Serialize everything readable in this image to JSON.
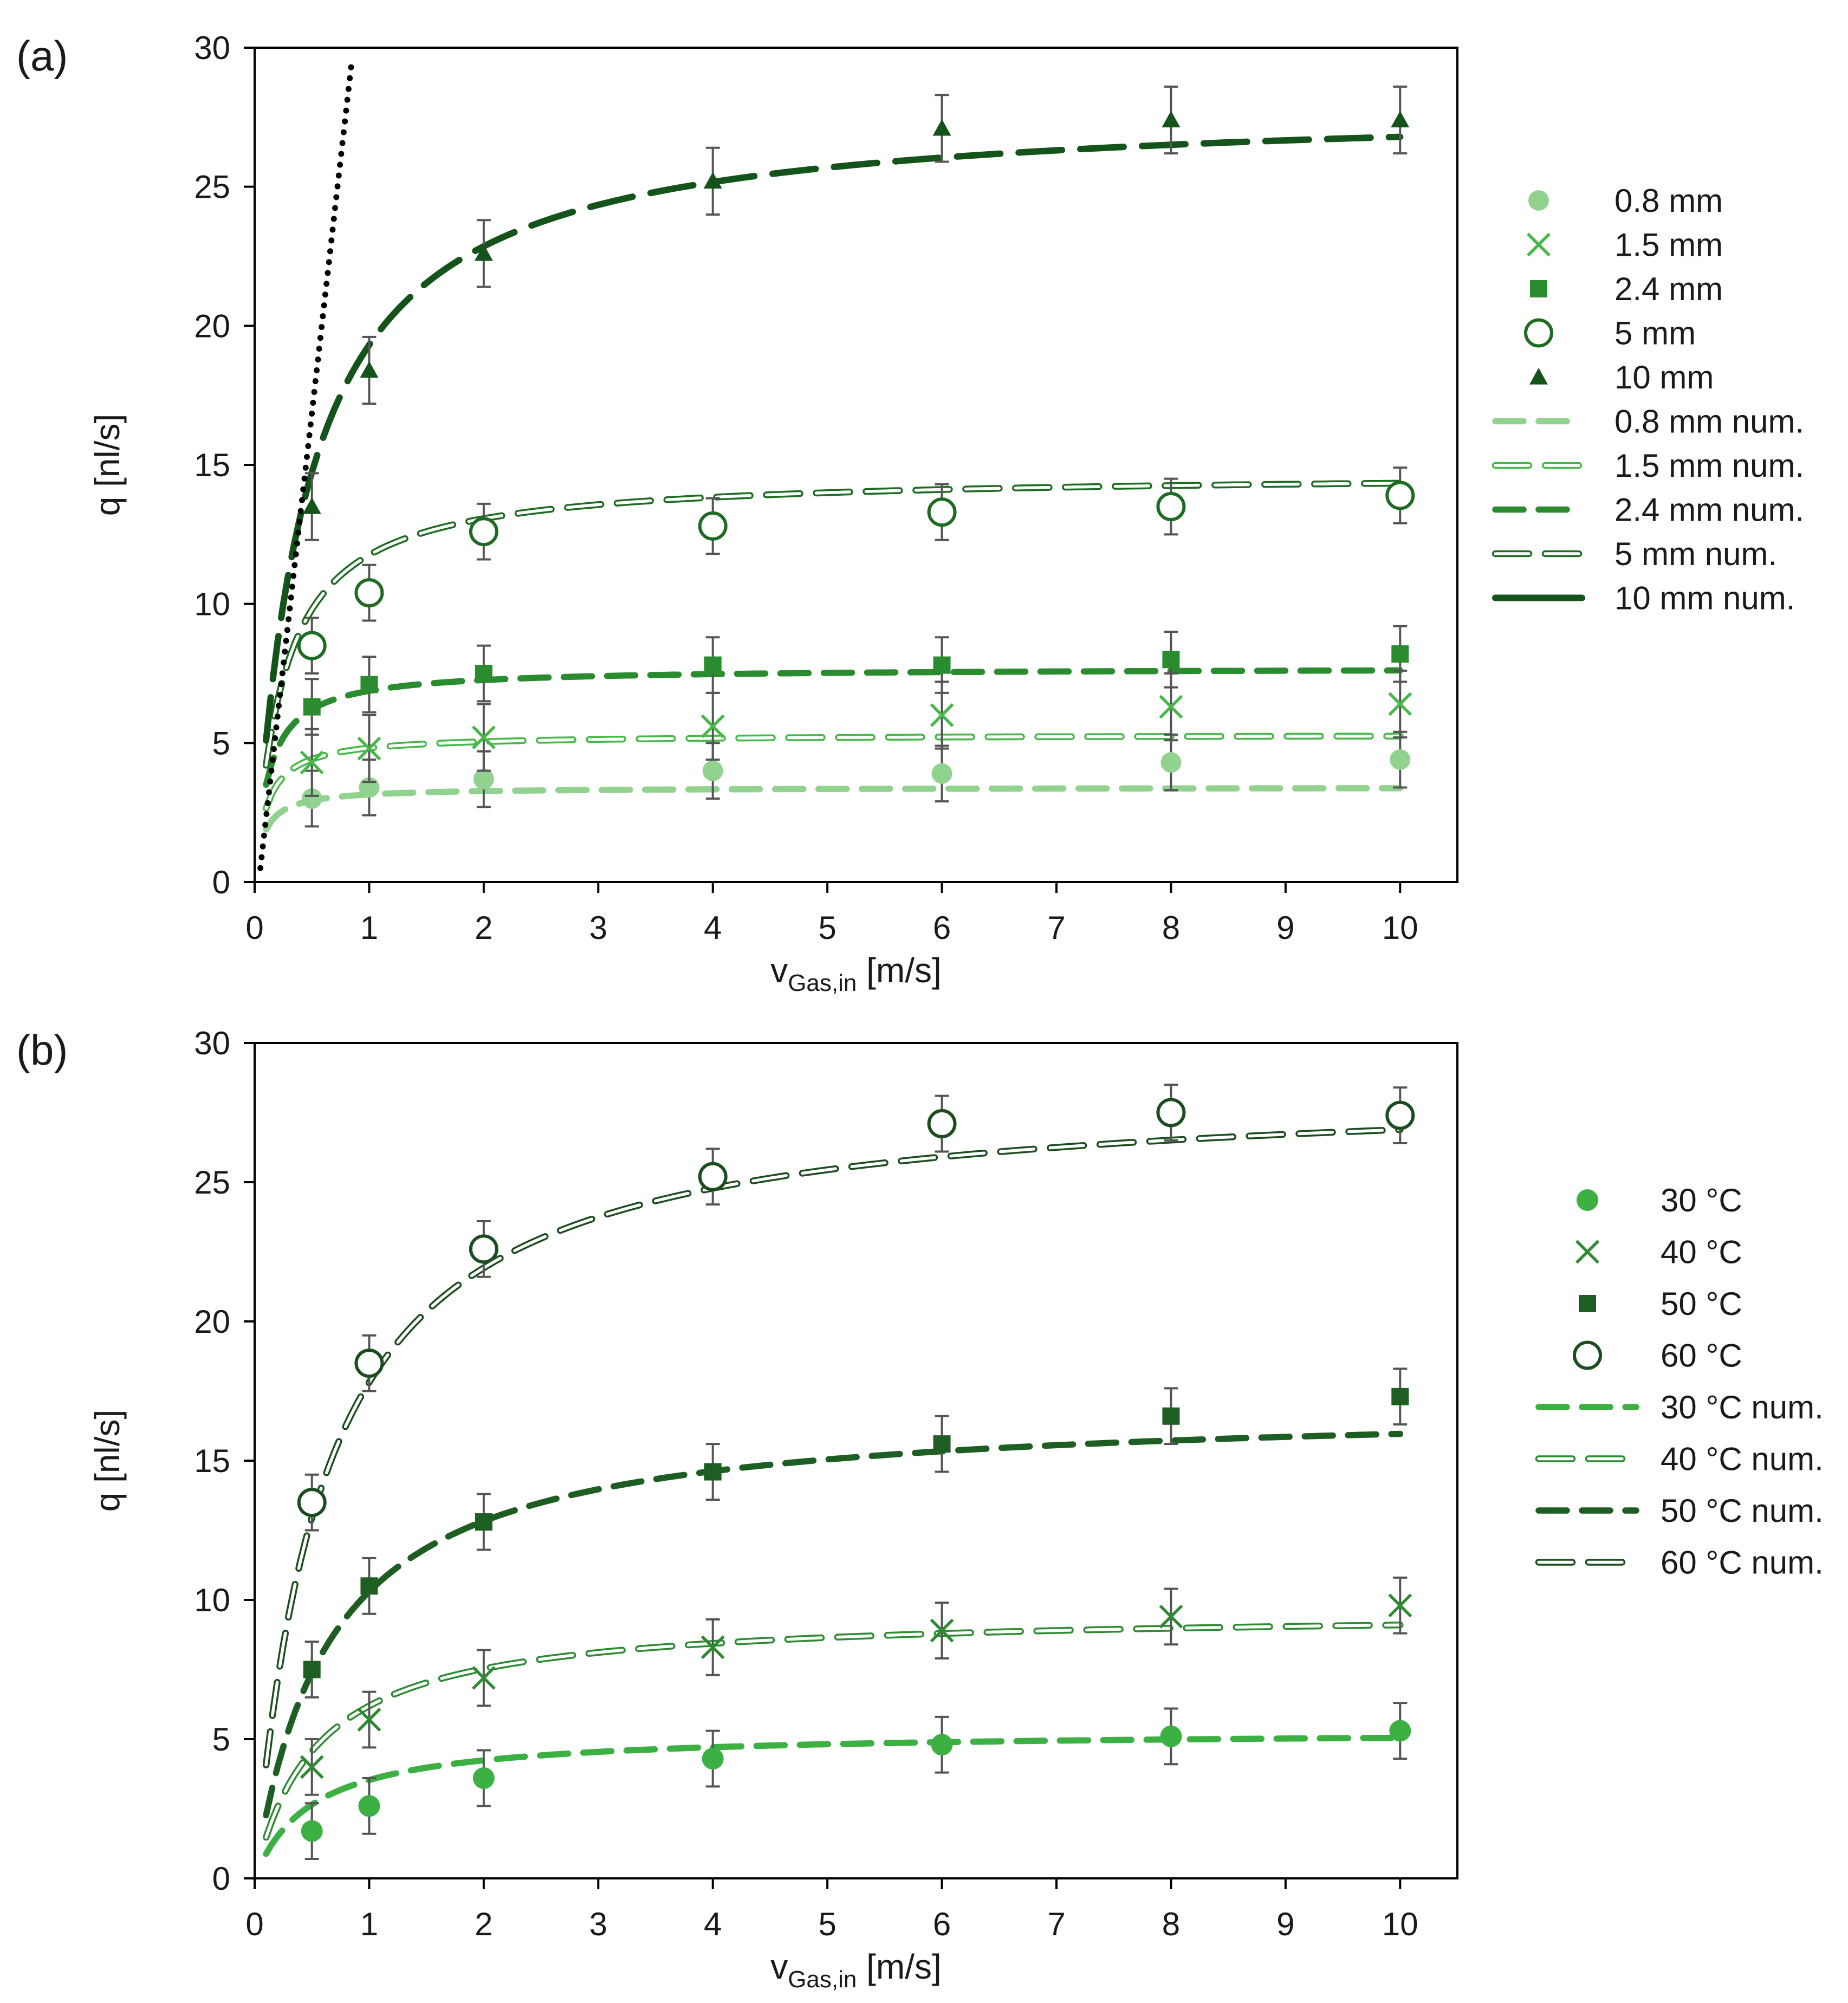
{
  "chart_data": [
    {
      "type": "scatter",
      "panel_label": "(a)",
      "xlabel": "v",
      "xlabel_subscript": "Gas,in",
      "xlabel_unit": "[m/s]",
      "ylabel": "q [nl/s]",
      "xlim": [
        0,
        10.5
      ],
      "ylim": [
        0,
        30
      ],
      "x_ticks": [
        0,
        1,
        2,
        3,
        4,
        5,
        6,
        7,
        8,
        9,
        10
      ],
      "y_ticks": [
        0,
        5,
        10,
        15,
        20,
        25,
        30
      ],
      "x": [
        0.5,
        1,
        2,
        4,
        6,
        8,
        10
      ],
      "legend_position": "right",
      "series": [
        {
          "name": "0.8 mm",
          "kind": "points",
          "marker": "circle-filled-small",
          "color": "#92d28f",
          "values": [
            3.0,
            3.4,
            3.7,
            4.0,
            3.9,
            4.3,
            4.4
          ],
          "error": 1.0
        },
        {
          "name": "1.5 mm",
          "kind": "points",
          "marker": "x",
          "color": "#45b848",
          "values": [
            4.3,
            4.8,
            5.2,
            5.6,
            6.0,
            6.3,
            6.4
          ],
          "error": 1.2
        },
        {
          "name": "2.4 mm",
          "kind": "points",
          "marker": "square",
          "color": "#2a8c2e",
          "values": [
            6.3,
            7.1,
            7.5,
            7.8,
            7.8,
            8.0,
            8.2
          ],
          "error": 1.0
        },
        {
          "name": "5    mm",
          "kind": "points",
          "marker": "circle-open",
          "color": "#1e6b22",
          "values": [
            8.5,
            10.4,
            12.6,
            12.8,
            13.3,
            13.5,
            13.9
          ],
          "error": 1.0
        },
        {
          "name": "10  mm",
          "kind": "points",
          "marker": "triangle",
          "color": "#14531a",
          "values": [
            13.5,
            18.4,
            22.6,
            25.2,
            27.1,
            27.4,
            27.4
          ],
          "error": 1.2
        },
        {
          "name": "0.8 mm num.",
          "kind": "line",
          "style": "dash",
          "color": "#92d28f",
          "qmax": 3.4,
          "k": 0.08
        },
        {
          "name": "1.5 mm num.",
          "kind": "line",
          "style": "hollow-dash",
          "color": "#45b848",
          "qmax": 5.3,
          "k": 0.1
        },
        {
          "name": "2.4 mm num.",
          "kind": "line",
          "style": "dash",
          "color": "#2a8c2e",
          "qmax": 7.7,
          "k": 0.12
        },
        {
          "name": "5    mm num.",
          "kind": "line",
          "style": "hollow-dash",
          "color": "#1e6b22",
          "qmax": 14.7,
          "k": 0.25
        },
        {
          "name": "10  mm num.",
          "kind": "line",
          "style": "longdash",
          "legend_style": "solid",
          "color": "#14531a",
          "qmax": 28.0,
          "k": 0.45
        },
        {
          "name": "",
          "kind": "reference-line",
          "style": "dotted",
          "color": "#000000",
          "x": [
            0.05,
            0.85
          ],
          "values": [
            0.5,
            29.6
          ]
        }
      ]
    },
    {
      "type": "scatter",
      "panel_label": "(b)",
      "xlabel": "v",
      "xlabel_subscript": "Gas,in",
      "xlabel_unit": "[m/s]",
      "ylabel": "q [nl/s]",
      "xlim": [
        0,
        10.5
      ],
      "ylim": [
        0,
        30
      ],
      "x_ticks": [
        0,
        1,
        2,
        3,
        4,
        5,
        6,
        7,
        8,
        9,
        10
      ],
      "y_ticks": [
        0,
        5,
        10,
        15,
        20,
        25,
        30
      ],
      "x": [
        0.5,
        1,
        2,
        4,
        6,
        8,
        10
      ],
      "legend_position": "right",
      "series": [
        {
          "name": "30 °C",
          "kind": "points",
          "marker": "circle-filled",
          "color": "#3cb043",
          "values": [
            1.7,
            2.6,
            3.6,
            4.3,
            4.8,
            5.1,
            5.3
          ],
          "error": 1.0
        },
        {
          "name": "40 °C",
          "kind": "points",
          "marker": "x",
          "color": "#2e8b32",
          "values": [
            4.0,
            5.7,
            7.2,
            8.3,
            8.9,
            9.4,
            9.8
          ],
          "error": 1.0
        },
        {
          "name": "50 °C",
          "kind": "points",
          "marker": "square",
          "color": "#1f5e22",
          "values": [
            7.5,
            10.5,
            12.8,
            14.6,
            15.6,
            16.6,
            17.3
          ],
          "error": 1.0
        },
        {
          "name": "60 °C",
          "kind": "points",
          "marker": "circle-open",
          "color": "#1c4d1f",
          "values": [
            13.5,
            18.5,
            22.6,
            25.2,
            27.1,
            27.5,
            27.4
          ],
          "error": 1.0
        },
        {
          "name": "30 °C num.",
          "kind": "line",
          "style": "dash",
          "color": "#3cb043",
          "qmax": 5.3,
          "k": 0.5
        },
        {
          "name": "40 °C num.",
          "kind": "line",
          "style": "hollow-dash",
          "color": "#2e8b32",
          "qmax": 9.6,
          "k": 0.55
        },
        {
          "name": "50 °C num.",
          "kind": "line",
          "style": "dash",
          "color": "#1f5e22",
          "qmax": 17.0,
          "k": 0.65
        },
        {
          "name": "60 °C num.",
          "kind": "line",
          "style": "hollow-dash",
          "color": "#1c4d1f",
          "qmax": 28.5,
          "k": 0.6
        }
      ]
    }
  ]
}
